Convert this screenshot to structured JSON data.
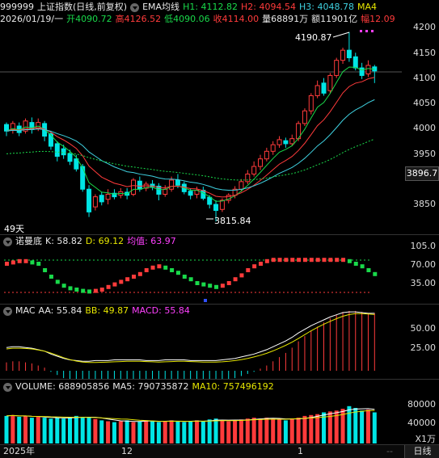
{
  "header1": {
    "code": "999999",
    "name": "上证指数(日线,前复权)",
    "indicator": "EMA均线",
    "h1": "H1: 4112.82",
    "h2": "H2: 4094.54",
    "h3": "H3: 4048.78",
    "ma4": "MA4"
  },
  "header2": {
    "date": "2026/01/19/一",
    "open": "开4090.72",
    "high": "高4126.52",
    "low": "低4090.06",
    "close": "收4114.00",
    "volume": "量68891万",
    "amount": "额11901亿",
    "change": "幅12.09"
  },
  "price_axis": [
    "4200",
    "4150",
    "4100",
    "4050",
    "4000",
    "3950",
    "3896.7",
    "3850"
  ],
  "annotations": {
    "high": "4190.87",
    "low": "3815.84",
    "period": "49天"
  },
  "kd": {
    "name": "诺曼底",
    "k": "K: 58.82",
    "d": "D: 69.12",
    "avg": "均值: 63.97",
    "axis": [
      "105.0",
      "70.00",
      "35.00"
    ]
  },
  "mac": {
    "name": "MAC",
    "aa": "AA: 55.84",
    "bb": "BB: 49.87",
    "macd": "MACD: 55.84",
    "axis": [
      "50.00",
      "25.00"
    ]
  },
  "vol": {
    "name": "VOLUME: 688905856",
    "ma5": "MA5: 790735872",
    "ma10": "MA10: 757496192",
    "axis": [
      "80000",
      "40000"
    ],
    "unit": "X1万"
  },
  "time_axis": [
    "2025年",
    "12",
    "1"
  ],
  "bottom_right": "日线",
  "colors": {
    "up": "#ff3b3b",
    "down": "#00e5e5",
    "green": "#19d94a",
    "yellow": "#e6e600",
    "magenta": "#ff40ff",
    "bg": "#000000"
  }
}
